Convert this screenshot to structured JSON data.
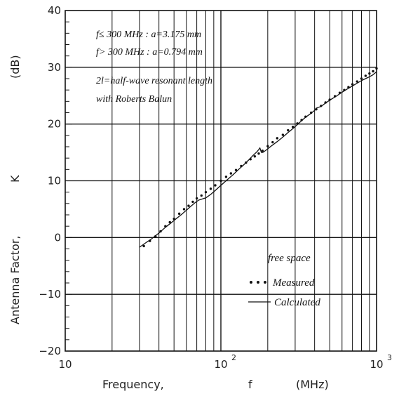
{
  "chart_data": {
    "type": "line",
    "xscale": "log",
    "xlim": [
      10,
      1000
    ],
    "ylim": [
      -20,
      40
    ],
    "grid": true,
    "xlabel": {
      "name": "Frequency,",
      "symbol": "f",
      "unit": "(MHz)"
    },
    "ylabel": {
      "name": "Antenna Factor,",
      "symbol": "K",
      "unit": "(dB)"
    },
    "xticks": [
      {
        "value": 10,
        "base": "10",
        "exp": ""
      },
      {
        "value": 100,
        "base": "10",
        "exp": "2"
      },
      {
        "value": 1000,
        "base": "10",
        "exp": "3"
      }
    ],
    "yticks": [
      {
        "value": -20,
        "label": "−20"
      },
      {
        "value": -10,
        "label": "−10"
      },
      {
        "value": 0,
        "label": "0"
      },
      {
        "value": 10,
        "label": "10"
      },
      {
        "value": 20,
        "label": "20"
      },
      {
        "value": 30,
        "label": "30"
      },
      {
        "value": 40,
        "label": "40"
      }
    ],
    "annotations": [
      "f≤ 300 MHz : a=3.175 mm",
      "f> 300 MHz : a=0.794 mm",
      "2l=half-wave resonant length",
      "with Roberts Balun"
    ],
    "legend": {
      "title": "free space",
      "position": "bottom-right",
      "entries": [
        "Measured",
        "Calculated"
      ]
    },
    "series": [
      {
        "name": "Measured",
        "style": "dots",
        "x": [
          32,
          35,
          38,
          41,
          44,
          47,
          50,
          54,
          58,
          62,
          66,
          70,
          75,
          80,
          86,
          92,
          100,
          108,
          116,
          125,
          135,
          145,
          155,
          165,
          175,
          185,
          200,
          215,
          230,
          250,
          270,
          290,
          310,
          330,
          350,
          380,
          410,
          440,
          470,
          500,
          540,
          580,
          620,
          660,
          700,
          750,
          800,
          850,
          900,
          950,
          1000
        ],
        "y": [
          -1.5,
          -0.6,
          0.2,
          1.1,
          2.0,
          2.7,
          3.3,
          4.2,
          5.0,
          5.6,
          6.3,
          6.9,
          7.4,
          8.0,
          8.6,
          9.2,
          10.0,
          10.7,
          11.3,
          11.9,
          12.6,
          13.2,
          13.8,
          14.3,
          14.8,
          15.3,
          16.1,
          16.8,
          17.5,
          18.1,
          18.9,
          19.5,
          20.1,
          20.7,
          21.3,
          22.0,
          22.6,
          23.2,
          23.8,
          24.3,
          24.9,
          25.5,
          26.0,
          26.5,
          27.0,
          27.5,
          28.0,
          28.5,
          28.9,
          29.3,
          29.8
        ]
      },
      {
        "name": "Calculated",
        "style": "line",
        "x": [
          30,
          33,
          36,
          40,
          44,
          48,
          52,
          56,
          60,
          64,
          68,
          72,
          76,
          80,
          86,
          92,
          100,
          110,
          120,
          130,
          140,
          150,
          160,
          170,
          175,
          178,
          182,
          186,
          195,
          210,
          230,
          250,
          270,
          290,
          310,
          330,
          350,
          380,
          400,
          410,
          420,
          440,
          470,
          500,
          550,
          600,
          650,
          700,
          760,
          820,
          880,
          940,
          1000
        ],
        "y": [
          -1.7,
          -0.9,
          -0.2,
          0.8,
          1.8,
          2.6,
          3.4,
          4.1,
          4.8,
          5.5,
          6.1,
          6.6,
          6.8,
          7.0,
          7.6,
          8.3,
          9.2,
          10.2,
          11.1,
          12.0,
          12.8,
          13.6,
          14.4,
          15.1,
          15.5,
          15.8,
          15.0,
          15.0,
          15.4,
          16.1,
          16.9,
          17.7,
          18.5,
          19.2,
          19.9,
          20.6,
          21.2,
          21.9,
          22.4,
          22.8,
          22.9,
          23.1,
          23.7,
          24.2,
          24.9,
          25.6,
          26.2,
          26.7,
          27.3,
          27.8,
          28.2,
          28.6,
          29.2
        ]
      }
    ]
  }
}
